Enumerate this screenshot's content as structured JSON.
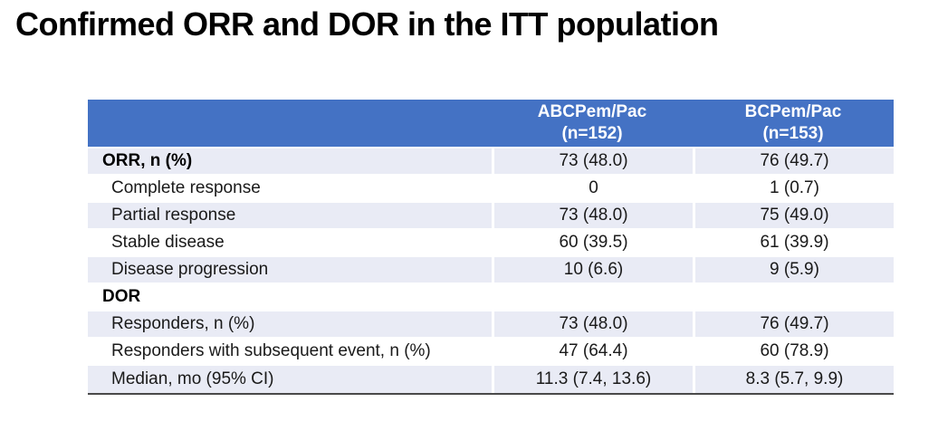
{
  "title": "Confirmed ORR and DOR in the ITT population",
  "table": {
    "columns": [
      {
        "label": "ABCPem/Pac",
        "n": "(n=152)"
      },
      {
        "label": "BCPem/Pac",
        "n": "(n=153)"
      }
    ],
    "rows": [
      {
        "label": "ORR, n (%)",
        "section": true,
        "values": [
          "73 (48.0)",
          "76 (49.7)"
        ]
      },
      {
        "label": "Complete response",
        "section": false,
        "values": [
          "0",
          "1 (0.7)"
        ]
      },
      {
        "label": "Partial response",
        "section": false,
        "values": [
          "73 (48.0)",
          "75 (49.0)"
        ]
      },
      {
        "label": "Stable disease",
        "section": false,
        "values": [
          "60 (39.5)",
          "61 (39.9)"
        ]
      },
      {
        "label": "Disease progression",
        "section": false,
        "values": [
          "10 (6.6)",
          "9 (5.9)"
        ]
      },
      {
        "label": "DOR",
        "section": true,
        "values": [
          "",
          ""
        ]
      },
      {
        "label": "Responders, n (%)",
        "section": false,
        "values": [
          "73 (48.0)",
          "76 (49.7)"
        ]
      },
      {
        "label": "Responders with subsequent event, n (%)",
        "section": false,
        "values": [
          "47 (64.4)",
          "60 (78.9)"
        ]
      },
      {
        "label": "Median, mo (95% CI)",
        "section": false,
        "values": [
          "11.3 (7.4, 13.6)",
          "8.3 (5.7, 9.9)"
        ]
      }
    ]
  },
  "colors": {
    "header_bg": "#4472C4",
    "band_bg": "#E9EBF5",
    "bottom_border": "#4A4A4A"
  }
}
